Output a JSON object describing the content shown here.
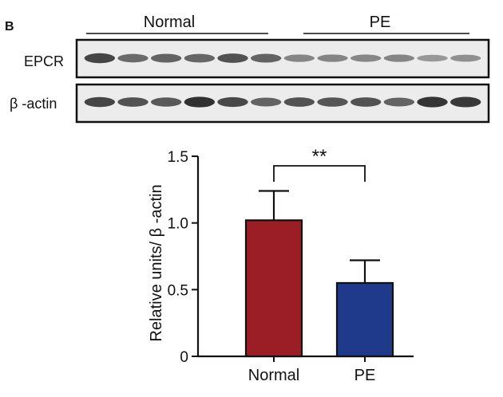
{
  "panel_label": "B",
  "blot": {
    "group_labels": [
      "Normal",
      "PE"
    ],
    "rows": [
      {
        "label": "EPCR",
        "band_intensity": [
          0.8,
          0.58,
          0.62,
          0.6,
          0.72,
          0.62,
          0.42,
          0.42,
          0.4,
          0.42,
          0.3,
          0.35
        ]
      },
      {
        "label": "β -actin",
        "band_intensity": [
          0.8,
          0.72,
          0.68,
          0.92,
          0.78,
          0.62,
          0.72,
          0.7,
          0.72,
          0.62,
          0.9,
          0.88
        ]
      }
    ]
  },
  "chart_data": {
    "type": "bar",
    "categories": [
      "Normal",
      "PE"
    ],
    "values": [
      1.02,
      0.55
    ],
    "error": [
      0.22,
      0.17
    ],
    "ylabel": "Relative units/ β -actin",
    "xlabel": "",
    "ylim": [
      0,
      1.5
    ],
    "yticks": [
      0,
      0.5,
      1.0,
      1.5
    ],
    "ytick_labels": [
      "0",
      "0.5",
      "1.0",
      "1.5"
    ],
    "significance": {
      "between": [
        "Normal",
        "PE"
      ],
      "label": "**"
    },
    "colors": [
      "#9b1e26",
      "#1f3a8a"
    ]
  }
}
